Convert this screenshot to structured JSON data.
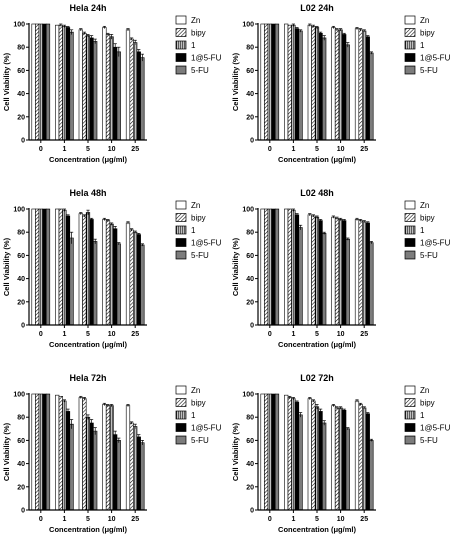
{
  "figure": {
    "legend_title": ""
  },
  "chart_data": [
    {
      "type": "bar",
      "title": "Hela 24h",
      "xlabel": "Concentration (μg/ml)",
      "ylabel": "Cell Viability (%)",
      "ylim": [
        0,
        100
      ],
      "yticks": [
        0,
        20,
        40,
        60,
        80,
        100
      ],
      "categories": [
        "0",
        "1",
        "5",
        "10",
        "25"
      ],
      "legend_position": "right",
      "series": [
        {
          "name": "Zn",
          "values": [
            100,
            99,
            95,
            97,
            95
          ],
          "errors": [
            0,
            0,
            1,
            1,
            1
          ]
        },
        {
          "name": "bipy",
          "values": [
            100,
            99,
            92,
            91,
            87
          ],
          "errors": [
            0,
            1,
            1,
            1,
            1
          ]
        },
        {
          "name": "1",
          "values": [
            100,
            98,
            90,
            89,
            84
          ],
          "errors": [
            0,
            1,
            1,
            2,
            2
          ]
        },
        {
          "name": "1@5-FU",
          "values": [
            100,
            97,
            88,
            80,
            76
          ],
          "errors": [
            0,
            1,
            2,
            3,
            2
          ]
        },
        {
          "name": "5-FU",
          "values": [
            100,
            93,
            85,
            76,
            71
          ],
          "errors": [
            0,
            2,
            2,
            4,
            3
          ]
        }
      ]
    },
    {
      "type": "bar",
      "title": "L02 24h",
      "xlabel": "Concentration (μg/ml)",
      "ylabel": "Cell Viability (%)",
      "ylim": [
        0,
        100
      ],
      "yticks": [
        0,
        20,
        40,
        60,
        80,
        100
      ],
      "categories": [
        "0",
        "1",
        "5",
        "10",
        "25"
      ],
      "legend_position": "right",
      "series": [
        {
          "name": "Zn",
          "values": [
            100,
            100,
            99,
            97,
            96
          ],
          "errors": [
            0,
            0,
            1,
            1,
            1
          ]
        },
        {
          "name": "bipy",
          "values": [
            100,
            99,
            98,
            95,
            95
          ],
          "errors": [
            0,
            0,
            1,
            1,
            1
          ]
        },
        {
          "name": "1",
          "values": [
            100,
            99,
            97,
            95,
            94
          ],
          "errors": [
            0,
            1,
            1,
            1,
            1
          ]
        },
        {
          "name": "1@5-FU",
          "values": [
            100,
            96,
            92,
            91,
            89
          ],
          "errors": [
            0,
            1,
            1,
            1,
            1
          ]
        },
        {
          "name": "5-FU",
          "values": [
            100,
            94,
            88,
            82,
            75
          ],
          "errors": [
            0,
            1,
            2,
            2,
            1
          ]
        }
      ]
    },
    {
      "type": "bar",
      "title": "Hela 48h",
      "xlabel": "Concentration (μg/ml)",
      "ylabel": "Cell Viability (%)",
      "ylim": [
        0,
        100
      ],
      "yticks": [
        0,
        20,
        40,
        60,
        80,
        100
      ],
      "categories": [
        "0",
        "1",
        "5",
        "10",
        "25"
      ],
      "legend_position": "right",
      "series": [
        {
          "name": "Zn",
          "values": [
            100,
            100,
            96,
            91,
            88
          ],
          "errors": [
            0,
            0,
            1,
            1,
            1
          ]
        },
        {
          "name": "bipy",
          "values": [
            100,
            100,
            94,
            90,
            82
          ],
          "errors": [
            0,
            0,
            1,
            1,
            1
          ]
        },
        {
          "name": "1",
          "values": [
            100,
            99,
            97,
            87,
            80
          ],
          "errors": [
            0,
            1,
            2,
            1,
            1
          ]
        },
        {
          "name": "1@5-FU",
          "values": [
            100,
            94,
            91,
            83,
            78
          ],
          "errors": [
            0,
            1,
            1,
            2,
            1
          ]
        },
        {
          "name": "5-FU",
          "values": [
            100,
            75,
            72,
            70,
            69
          ],
          "errors": [
            0,
            5,
            2,
            1,
            1
          ]
        }
      ]
    },
    {
      "type": "bar",
      "title": "L02 48h",
      "xlabel": "Concentration (μg/ml)",
      "ylabel": "Cell Viability (%)",
      "ylim": [
        0,
        100
      ],
      "yticks": [
        0,
        20,
        40,
        60,
        80,
        100
      ],
      "categories": [
        "0",
        "1",
        "5",
        "10",
        "25"
      ],
      "legend_position": "right",
      "series": [
        {
          "name": "Zn",
          "values": [
            100,
            100,
            95,
            93,
            91
          ],
          "errors": [
            0,
            0,
            1,
            1,
            1
          ]
        },
        {
          "name": "bipy",
          "values": [
            100,
            100,
            94,
            92,
            90
          ],
          "errors": [
            0,
            0,
            1,
            1,
            1
          ]
        },
        {
          "name": "1",
          "values": [
            100,
            99,
            93,
            91,
            89
          ],
          "errors": [
            0,
            1,
            1,
            1,
            1
          ]
        },
        {
          "name": "1@5-FU",
          "values": [
            100,
            95,
            90,
            90,
            88
          ],
          "errors": [
            0,
            1,
            1,
            1,
            1
          ]
        },
        {
          "name": "5-FU",
          "values": [
            100,
            84,
            79,
            74,
            71
          ],
          "errors": [
            0,
            2,
            1,
            1,
            1
          ]
        }
      ]
    },
    {
      "type": "bar",
      "title": "Hela 72h",
      "xlabel": "Concentration (μg/ml)",
      "ylabel": "Cell Viability (%)",
      "ylim": [
        0,
        100
      ],
      "yticks": [
        0,
        20,
        40,
        60,
        80,
        100
      ],
      "categories": [
        "0",
        "1",
        "5",
        "10",
        "25"
      ],
      "legend_position": "right",
      "series": [
        {
          "name": "Zn",
          "values": [
            100,
            99,
            97,
            91,
            90
          ],
          "errors": [
            0,
            0,
            1,
            1,
            1
          ]
        },
        {
          "name": "bipy",
          "values": [
            100,
            98,
            96,
            90,
            75
          ],
          "errors": [
            0,
            0,
            1,
            1,
            1
          ]
        },
        {
          "name": "1",
          "values": [
            100,
            94,
            80,
            90,
            72
          ],
          "errors": [
            0,
            1,
            2,
            1,
            2
          ]
        },
        {
          "name": "1@5-FU",
          "values": [
            100,
            85,
            75,
            65,
            63
          ],
          "errors": [
            0,
            2,
            3,
            3,
            2
          ]
        },
        {
          "name": "5-FU",
          "values": [
            100,
            74,
            68,
            60,
            58
          ],
          "errors": [
            0,
            4,
            3,
            2,
            2
          ]
        }
      ]
    },
    {
      "type": "bar",
      "title": "L02 72h",
      "xlabel": "Concentration (μg/ml)",
      "ylabel": "Cell Viability (%)",
      "ylim": [
        0,
        100
      ],
      "yticks": [
        0,
        20,
        40,
        60,
        80,
        100
      ],
      "categories": [
        "0",
        "1",
        "5",
        "10",
        "25"
      ],
      "legend_position": "right",
      "series": [
        {
          "name": "Zn",
          "values": [
            100,
            99,
            96,
            90,
            94
          ],
          "errors": [
            0,
            0,
            1,
            1,
            1
          ]
        },
        {
          "name": "bipy",
          "values": [
            100,
            97,
            94,
            88,
            91
          ],
          "errors": [
            0,
            1,
            1,
            1,
            1
          ]
        },
        {
          "name": "1",
          "values": [
            100,
            96,
            89,
            88,
            88
          ],
          "errors": [
            0,
            1,
            2,
            1,
            1
          ]
        },
        {
          "name": "1@5-FU",
          "values": [
            100,
            93,
            85,
            86,
            83
          ],
          "errors": [
            0,
            1,
            2,
            1,
            1
          ]
        },
        {
          "name": "5-FU",
          "values": [
            100,
            82,
            75,
            70,
            60
          ],
          "errors": [
            0,
            2,
            2,
            1,
            1
          ]
        }
      ]
    }
  ]
}
